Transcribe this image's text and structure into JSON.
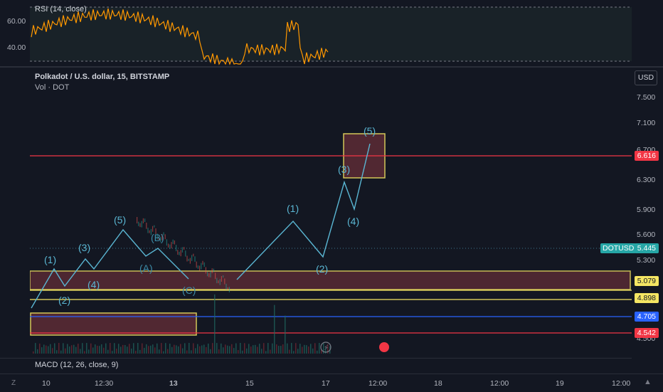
{
  "rsi": {
    "label": "RSI (14, close)",
    "levels": [
      "60.00",
      "40.00"
    ]
  },
  "header": {
    "symbol": "Polkadot / U.S. dollar, 15, BITSTAMP",
    "volume": "Vol · DOT"
  },
  "currency": "USD",
  "price_axis": [
    "7.500",
    "7.100",
    "6.700",
    "6.300",
    "5.900",
    "5.600",
    "5.300",
    "4.500"
  ],
  "price_tags": {
    "resistance": "6.616",
    "symbol_name": "DOTUSD",
    "last": "5.445",
    "zone_top": "5.079",
    "zone_bottom": "4.898",
    "blue_line": "4.705",
    "red_support": "4.542"
  },
  "wave_labels": [
    "(1)",
    "(2)",
    "(3)",
    "(4)",
    "(5)",
    "(A)",
    "(B)",
    "(C)",
    "(1)",
    "(2)",
    "(3)",
    "(4)",
    "(5)"
  ],
  "macd": {
    "label": "MACD (12, 26, close, 9)"
  },
  "time_axis": [
    "10",
    "12:30",
    "13",
    "15",
    "17",
    "12:00",
    "18",
    "12:00",
    "19",
    "12:00"
  ],
  "colors": {
    "background": "#131722",
    "wave": "#5ab6d3",
    "rsi": "#ff9800",
    "zone": "#f5e663",
    "red": "#f23645",
    "blue": "#2962ff"
  }
}
